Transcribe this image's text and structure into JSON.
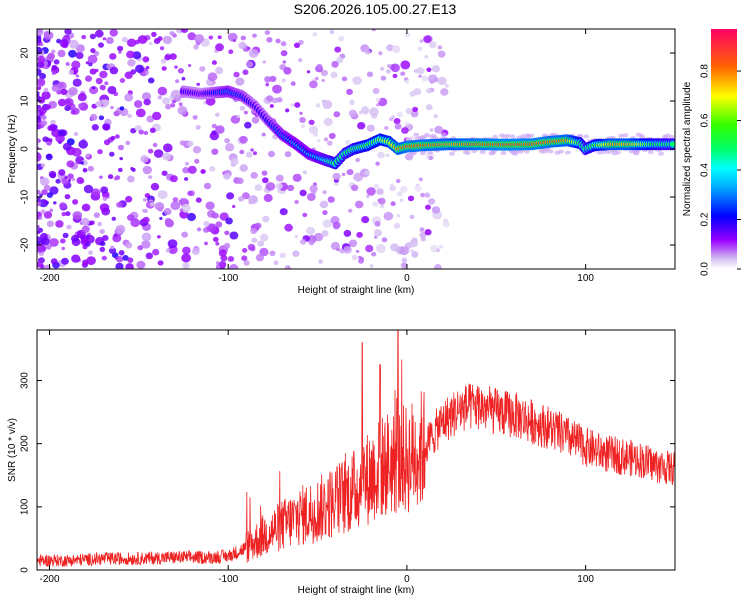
{
  "title": "S206.2026.105.00.27.E13",
  "chart_data": [
    {
      "id": "spectrogram",
      "type": "heatmap",
      "xlabel": "Height of straight line (km)",
      "ylabel": "Frequency (Hz)",
      "xlim": [
        -207,
        150
      ],
      "ylim": [
        -25,
        25
      ],
      "xticks": [
        -200,
        -100,
        0,
        100
      ],
      "yticks": [
        -20,
        -10,
        0,
        10,
        20
      ],
      "colorbar": {
        "label": "Normalized spectral amplitude",
        "range": [
          0.0,
          0.97
        ],
        "ticks": [
          0.0,
          0.2,
          0.4,
          0.6,
          0.8
        ]
      },
      "ridge": [
        {
          "x": -125,
          "y": 12,
          "amp": 0.2
        },
        {
          "x": -115,
          "y": 11.5,
          "amp": 0.18
        },
        {
          "x": -100,
          "y": 12,
          "amp": 0.3
        },
        {
          "x": -92,
          "y": 11,
          "amp": 0.25
        },
        {
          "x": -85,
          "y": 9,
          "amp": 0.2
        },
        {
          "x": -78,
          "y": 6,
          "amp": 0.22
        },
        {
          "x": -70,
          "y": 3,
          "amp": 0.3
        },
        {
          "x": -62,
          "y": 1,
          "amp": 0.35
        },
        {
          "x": -55,
          "y": -1,
          "amp": 0.35
        },
        {
          "x": -48,
          "y": -2,
          "amp": 0.4
        },
        {
          "x": -40,
          "y": -3,
          "amp": 0.55
        },
        {
          "x": -35,
          "y": -1,
          "amp": 0.5
        },
        {
          "x": -30,
          "y": 0,
          "amp": 0.55
        },
        {
          "x": -22,
          "y": 0.8,
          "amp": 0.6
        },
        {
          "x": -15,
          "y": 2,
          "amp": 0.65
        },
        {
          "x": -10,
          "y": 1.5,
          "amp": 0.7
        },
        {
          "x": -5,
          "y": 0,
          "amp": 0.8
        },
        {
          "x": 0,
          "y": 0.5,
          "amp": 0.85
        },
        {
          "x": 10,
          "y": 0.8,
          "amp": 0.85
        },
        {
          "x": 25,
          "y": 1,
          "amp": 0.8
        },
        {
          "x": 40,
          "y": 1,
          "amp": 0.85
        },
        {
          "x": 55,
          "y": 0.9,
          "amp": 0.9
        },
        {
          "x": 70,
          "y": 1,
          "amp": 0.88
        },
        {
          "x": 80,
          "y": 1.5,
          "amp": 0.85
        },
        {
          "x": 90,
          "y": 1.8,
          "amp": 0.82
        },
        {
          "x": 97,
          "y": 1.2,
          "amp": 0.6
        },
        {
          "x": 100,
          "y": 0,
          "amp": 0.5
        },
        {
          "x": 105,
          "y": 0.8,
          "amp": 0.6
        },
        {
          "x": 115,
          "y": 1,
          "amp": 0.8
        },
        {
          "x": 125,
          "y": 1,
          "amp": 0.78
        },
        {
          "x": 140,
          "y": 1,
          "amp": 0.55
        },
        {
          "x": 150,
          "y": 1,
          "amp": 0.5
        }
      ]
    },
    {
      "id": "snr",
      "type": "line",
      "xlabel": "Height of straight line (km)",
      "ylabel": "SNR (10 * v/v)",
      "xlim": [
        -207,
        150
      ],
      "ylim": [
        0,
        380
      ],
      "xticks": [
        -200,
        -100,
        0,
        100
      ],
      "yticks": [
        0,
        100,
        200,
        300
      ],
      "color": "#ee2222",
      "series": [
        {
          "name": "SNR",
          "x": [
            -207,
            -190,
            -170,
            -150,
            -130,
            -110,
            -100,
            -90,
            -80,
            -70,
            -60,
            -50,
            -40,
            -30,
            -20,
            -10,
            0,
            10,
            20,
            30,
            40,
            50,
            60,
            70,
            80,
            90,
            100,
            110,
            120,
            130,
            140,
            150
          ],
          "values": [
            15,
            15,
            18,
            18,
            20,
            20,
            22,
            35,
            55,
            70,
            85,
            95,
            110,
            125,
            150,
            170,
            175,
            195,
            235,
            255,
            260,
            250,
            245,
            235,
            225,
            210,
            195,
            185,
            180,
            175,
            165,
            160
          ]
        }
      ],
      "spikes": [
        {
          "x": -25,
          "y": 360
        },
        {
          "x": -15,
          "y": 325
        },
        {
          "x": -5,
          "y": 380
        }
      ]
    }
  ]
}
